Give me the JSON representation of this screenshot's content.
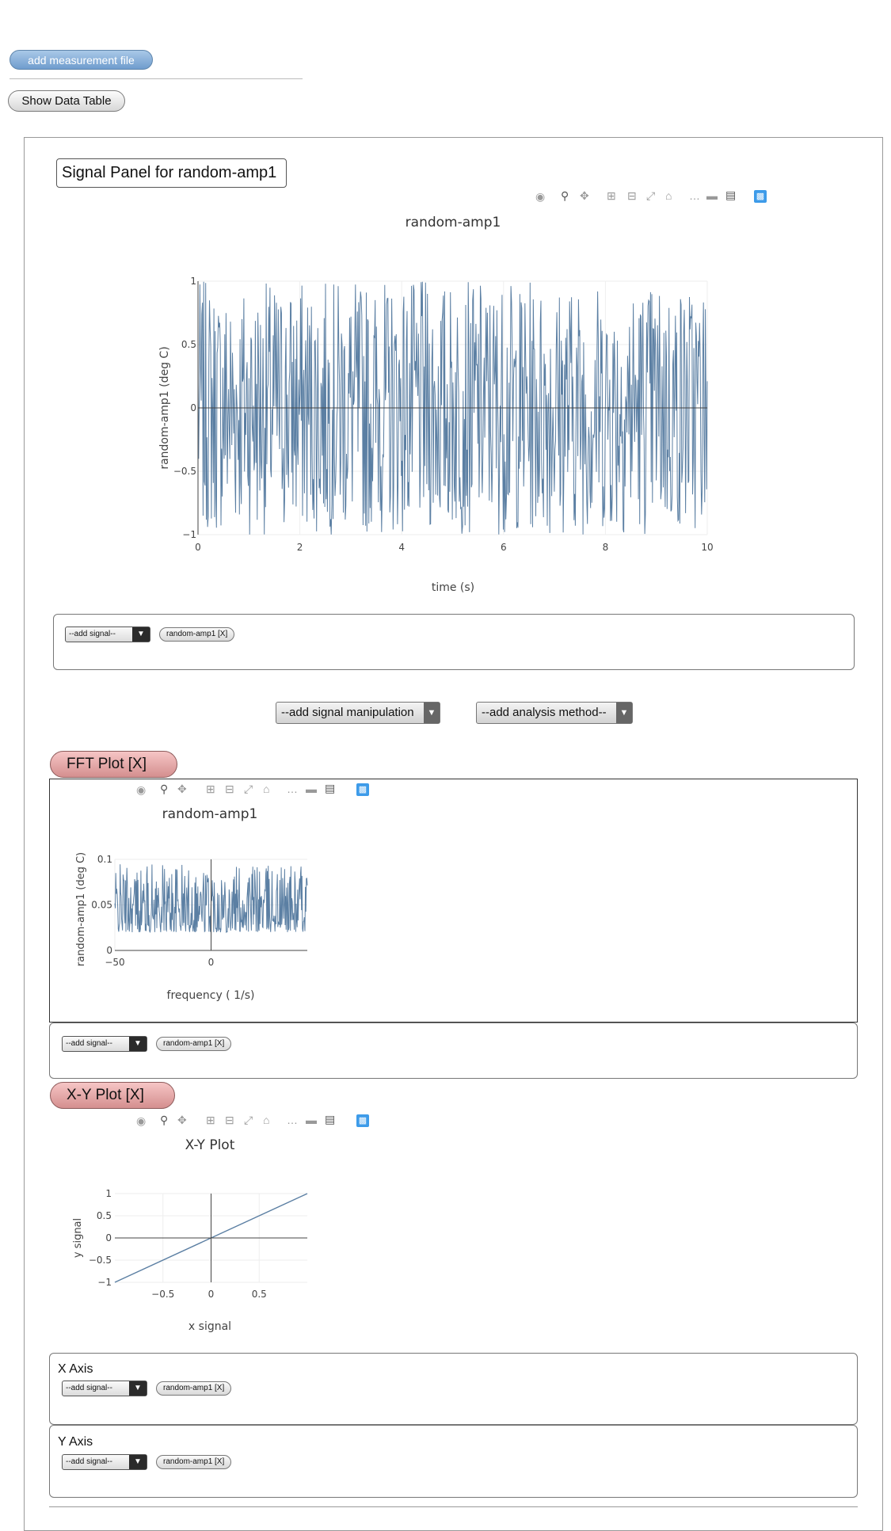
{
  "top": {
    "add_measurement_label": "add measurement file",
    "show_table_label": "Show Data Table"
  },
  "panel": {
    "title": "Signal Panel for random-amp1",
    "add_signal_placeholder": "--add signal--",
    "signal_chip": "random-amp1  [X]",
    "manipulation_select": "--add signal manipulation",
    "analysis_select": "--add analysis method--"
  },
  "fft": {
    "header": "FFT Plot  [X]",
    "add_signal_placeholder": "--add signal--",
    "signal_chip": "random-amp1  [X]"
  },
  "xy": {
    "header": "X-Y Plot  [X]",
    "x_axis_label": "X Axis",
    "y_axis_label": "Y Axis",
    "x_add_signal": "--add signal--",
    "y_add_signal": "--add signal--",
    "x_chip": "random-amp1  [X]",
    "y_chip": "random-amp1  [X]"
  },
  "modebar_icons": [
    "camera-icon",
    "zoom-icon",
    "pan-icon",
    "zoom-in-icon",
    "zoom-out-icon",
    "autoscale-icon",
    "reset-axes-icon",
    "spike-lines-icon",
    "hover-closest-icon",
    "hover-compare-icon",
    "plotly-logo-icon"
  ],
  "colors": {
    "trace": "#5b7fa3",
    "accent": "#3d9be9"
  },
  "chart_data": [
    {
      "type": "line",
      "title": "random-amp1",
      "xlabel": "time (s)",
      "ylabel": "random-amp1 (deg C)",
      "xlim": [
        0,
        10
      ],
      "ylim": [
        -1,
        1
      ],
      "xticks": [
        "0",
        "2",
        "4",
        "6",
        "8",
        "10"
      ],
      "yticks": [
        "1",
        "0.5",
        "0",
        "−0.5",
        "−1"
      ],
      "series": [
        {
          "samples": 800,
          "amplitude": 1,
          "distribution": "uniform random"
        }
      ]
    },
    {
      "type": "line",
      "title": "random-amp1",
      "xlabel": "frequency ( 1/s)",
      "ylabel": "random-amp1 (deg C)",
      "xlim": [
        -50,
        50
      ],
      "ylim": [
        0,
        0.1
      ],
      "xticks": [
        "−50",
        "0"
      ],
      "yticks": [
        "0.1",
        "0.05",
        "0"
      ],
      "series": [
        {
          "samples": 400
        }
      ]
    },
    {
      "type": "line",
      "title": "X-Y Plot",
      "xlabel": "x signal",
      "ylabel": "y signal",
      "xlim": [
        -1,
        1
      ],
      "ylim": [
        -1,
        1
      ],
      "xticks": [
        "−0.5",
        "0",
        "0.5"
      ],
      "yticks": [
        "1",
        "0.5",
        "0",
        "−0.5",
        "−1"
      ],
      "series": [
        {
          "x": [
            -1,
            1
          ],
          "y": [
            -1,
            1
          ]
        }
      ]
    }
  ]
}
